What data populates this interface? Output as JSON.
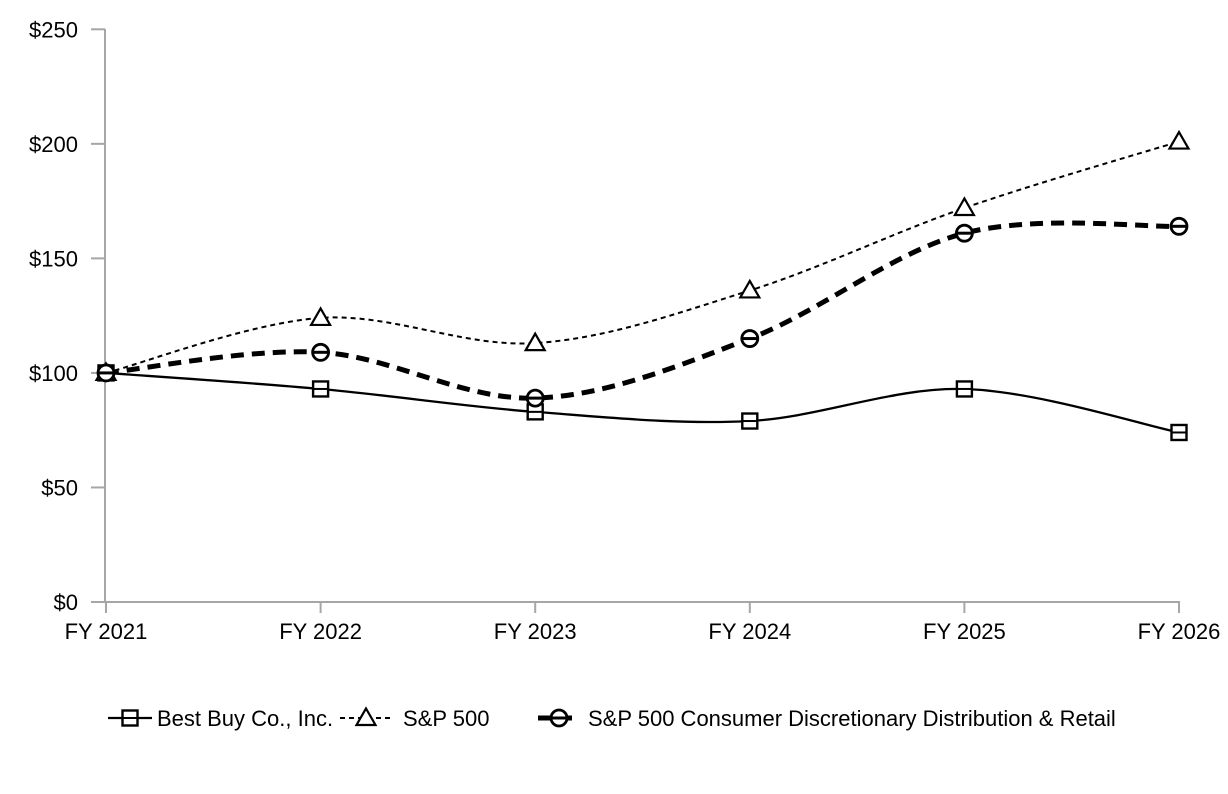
{
  "chart_data": {
    "type": "line",
    "title": "",
    "x": [
      "FY 2021",
      "FY 2022",
      "FY 2023",
      "FY 2024",
      "FY 2025",
      "FY 2026"
    ],
    "series": [
      {
        "name": "Best Buy Co., Inc.",
        "values": [
          100,
          93,
          83,
          79,
          93,
          74
        ],
        "line_style": "solid",
        "marker": "square",
        "stroke_width": 2.3,
        "dash": ""
      },
      {
        "name": "S&P 500",
        "values": [
          100,
          124,
          113,
          136,
          172,
          201
        ],
        "line_style": "dashed-thin",
        "marker": "triangle",
        "stroke_width": 2,
        "dash": "5,4"
      },
      {
        "name": "S&P 500 Consumer Discretionary Distribution & Retail",
        "values": [
          100,
          109,
          89,
          115,
          161,
          164
        ],
        "line_style": "dashed-thick",
        "marker": "circle",
        "stroke_width": 5,
        "dash": "13,8"
      }
    ],
    "y_ticks": [
      {
        "label": "$250",
        "value": 250
      },
      {
        "label": "$200",
        "value": 200
      },
      {
        "label": "$150",
        "value": 150
      },
      {
        "label": "$100",
        "value": 100
      },
      {
        "label": "$50",
        "value": 50
      },
      {
        "label": "$0",
        "value": 0
      }
    ],
    "ylim": [
      0,
      250
    ],
    "xlabel": "",
    "ylabel": "",
    "grid": false,
    "smoothed": true,
    "legend_position": "bottom",
    "colors": {
      "line": "#000000",
      "axis": "#a6a6a6",
      "background": "#ffffff",
      "marker_fill": "#ffffff"
    }
  }
}
